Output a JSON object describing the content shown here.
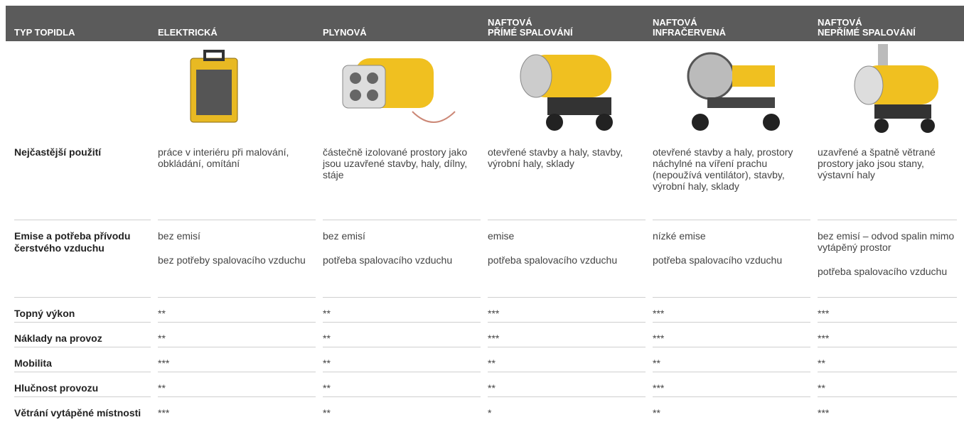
{
  "header": [
    "TYP TOPIDLA",
    "ELEKTRICKÁ",
    "PLYNOVÁ",
    "NAFTOVÁ\nPŘÍMÉ SPALOVÁNÍ",
    "NAFTOVÁ\nINFRAČERVENÁ",
    "NAFTOVÁ\nNEPŘÍMÉ SPALOVÁNÍ"
  ],
  "rows": [
    {
      "label": "Nejčastější použití",
      "cells": [
        [
          "práce v interiéru při malování, obkládání, omítání"
        ],
        [
          "částečně izolované prostory jako jsou uzavřené stavby, haly, dílny, stáje"
        ],
        [
          "otevřené stavby a haly, stavby, výrobní haly, sklady"
        ],
        [
          "otevřené stavby a haly, prostory náchylné na víření prachu (nepoužívá ventilátor), stavby, výrobní haly, sklady"
        ],
        [
          "uzavřené a špatně větrané prostory jako jsou stany, výstavní haly"
        ]
      ]
    },
    {
      "label": "Emise a potřeba přívodu čerstvého vzduchu",
      "cells": [
        [
          "bez emisí",
          "bez potřeby spalovacího vzduchu"
        ],
        [
          "bez emisí",
          "potřeba spalovacího vzduchu"
        ],
        [
          "emise",
          "potřeba spalovacího vzduchu"
        ],
        [
          "nízké emise",
          "potřeba spalovacího vzduchu"
        ],
        [
          "bez emisí – odvod spalin mimo vytápěný prostor",
          "potřeba spalovacího vzduchu"
        ]
      ]
    },
    {
      "label": "Topný výkon",
      "cells": [
        [
          "**"
        ],
        [
          "**"
        ],
        [
          "***"
        ],
        [
          "***"
        ],
        [
          "***"
        ]
      ]
    },
    {
      "label": "Náklady na provoz",
      "cells": [
        [
          "**"
        ],
        [
          "**"
        ],
        [
          "***"
        ],
        [
          "***"
        ],
        [
          "***"
        ]
      ]
    },
    {
      "label": "Mobilita",
      "cells": [
        [
          "***"
        ],
        [
          "**"
        ],
        [
          "**"
        ],
        [
          "**"
        ],
        [
          "**"
        ]
      ]
    },
    {
      "label": "Hlučnost provozu",
      "cells": [
        [
          "**"
        ],
        [
          "**"
        ],
        [
          "**"
        ],
        [
          "***"
        ],
        [
          "**"
        ]
      ]
    },
    {
      "label": "Větrání vytápěné místnosti",
      "cells": [
        [
          "***"
        ],
        [
          "**"
        ],
        [
          "*"
        ],
        [
          "**"
        ],
        [
          "***"
        ]
      ]
    }
  ]
}
